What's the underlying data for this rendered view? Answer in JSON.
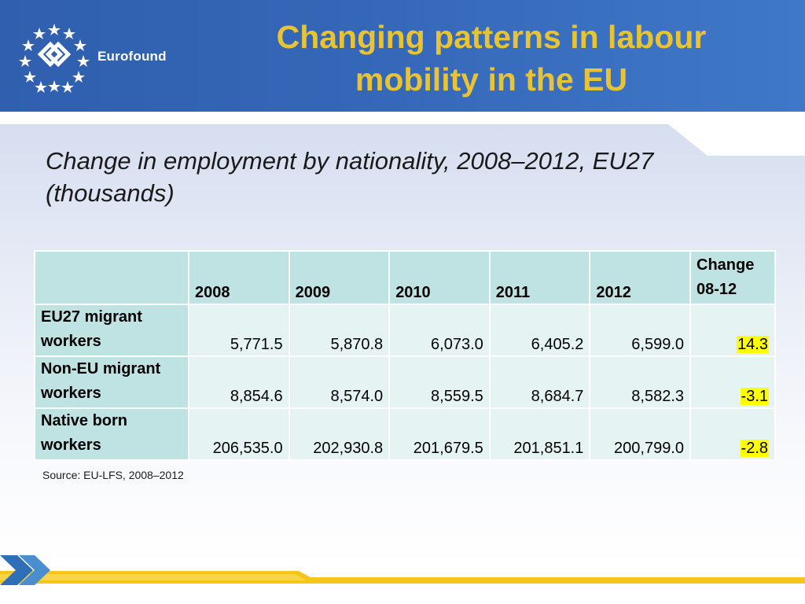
{
  "header": {
    "logo_name": "Eurofound",
    "title": "Changing patterns in labour mobility in the EU",
    "title_color": "#e8c333",
    "background_color": "#3567b8"
  },
  "subtitle": "Change in employment by nationality, 2008–2012, EU27 (thousands)",
  "table": {
    "columns": [
      "",
      "2008",
      "2009",
      "2010",
      "2011",
      "2012",
      "Change 08-12"
    ],
    "rows": [
      {
        "label": "EU27 migrant workers",
        "values": [
          "5,771.5",
          "5,870.8",
          "6,073.0",
          "6,405.2",
          "6,599.0"
        ],
        "change": "14.3"
      },
      {
        "label": "Non-EU migrant workers",
        "values": [
          "8,854.6",
          "8,574.0",
          "8,559.5",
          "8,684.7",
          "8,582.3"
        ],
        "change": "-3.1"
      },
      {
        "label": "Native born workers",
        "values": [
          "206,535.0",
          "202,930.8",
          "201,679.5",
          "201,851.1",
          "200,799.0"
        ],
        "change": "-2.8"
      }
    ],
    "highlight_color": "#ffff00"
  },
  "source": "Source: EU-LFS, 2008–2012"
}
